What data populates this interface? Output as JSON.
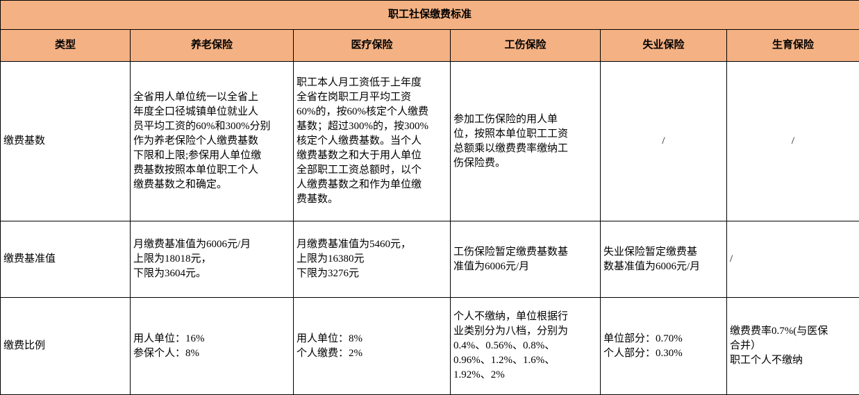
{
  "title": "职工社保缴费标准",
  "header": [
    "类型",
    "养老保险",
    "医疗保险",
    "工伤保险",
    "失业保险",
    "生育保险"
  ],
  "rows": [
    {
      "label": "缴费基数",
      "cells": [
        [
          "全省用人单位统一以全省上",
          "年度全口径城镇单位就业人",
          "员平均工资的60%和300%分别",
          "作为养老保险个人缴费基数",
          "下限和上限;参保用人单位缴",
          "费基数按照本单位职工个人",
          "缴费基数之和确定。"
        ],
        [
          "职工本人月工资低于上年度",
          "全省在岗职工月平均工资",
          "60%的，按60%核定个人缴费",
          "基数；超过300%的，按300%",
          "核定个人缴费基数。当个人",
          "缴费基数之和大于用人单位",
          "全部职工工资总额时，以个",
          "人缴费基数之和作为单位缴",
          "费基数。"
        ],
        [
          "参加工伤保险的用人单",
          "位，按照本单位职工工资",
          "总额乘以缴费费率缴纳工",
          "伤保险费。"
        ],
        [
          "/"
        ],
        [
          "/"
        ]
      ]
    },
    {
      "label": "缴费基准值",
      "cells": [
        [
          "月缴费基准值为6006元/月",
          "上限为18018元，",
          "下限为3604元。"
        ],
        [
          "月缴费基准值为5460元，",
          "上限为16380元",
          "下限为3276元"
        ],
        [
          "工伤保险暂定缴费基数基",
          "准值为6006元/月"
        ],
        [
          "失业保险暂定缴费基",
          "数基准值为6006元/月"
        ],
        [
          "/"
        ]
      ]
    },
    {
      "label": "缴费比例",
      "cells": [
        [
          "用人单位：16%",
          "参保个人：8%"
        ],
        [
          "用人单位：8%",
          "个人缴费：2%"
        ],
        [
          "个人不缴纳，单位根据行",
          "业类别分为八档，分别为",
          "0.4%、0.56%、0.8%、",
          "0.96%、1.2%、1.6%、",
          "1.92%、2%"
        ],
        [
          "单位部分：0.70%",
          "个人部分：0.30%"
        ],
        [
          "缴费费率0.7%(与医保",
          "合并）",
          "职工个人不缴纳"
        ]
      ]
    }
  ],
  "colors": {
    "header_bg": "#F4B183",
    "border": "#000000"
  }
}
